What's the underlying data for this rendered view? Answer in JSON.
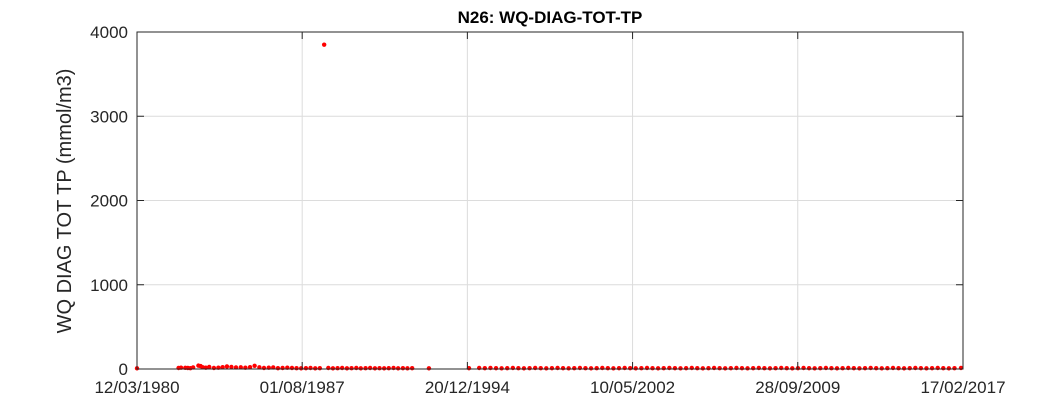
{
  "chart_data": {
    "type": "scatter",
    "title": "N26: WQ-DIAG-TOT-TP",
    "xlabel": "",
    "ylabel": "WQ DIAG TOT TP (mmol/m3)",
    "x_type": "date",
    "xlim": [
      "1980-03-12",
      "2017-02-17"
    ],
    "ylim": [
      0,
      4000
    ],
    "x_ticks": [
      "1980-03-12",
      "1987-08-01",
      "1994-12-20",
      "2002-05-10",
      "2009-09-28",
      "2017-02-17"
    ],
    "x_tick_labels": [
      "12/03/1980",
      "01/08/1987",
      "20/12/1994",
      "10/05/2002",
      "28/09/2009",
      "17/02/2017"
    ],
    "y_ticks": [
      0,
      1000,
      2000,
      3000,
      4000
    ],
    "y_tick_labels": [
      "0",
      "1000",
      "2000",
      "3000",
      "4000"
    ],
    "grid": true,
    "marker_color": "#ff0000",
    "series": [
      {
        "points": [
          [
            "1980-03-12",
            8
          ],
          [
            "1982-01-20",
            12
          ],
          [
            "1982-03-01",
            15
          ],
          [
            "1982-05-10",
            14
          ],
          [
            "1982-06-20",
            12
          ],
          [
            "1982-08-01",
            10
          ],
          [
            "1982-09-15",
            18
          ],
          [
            "1982-12-10",
            40
          ],
          [
            "1983-01-15",
            35
          ],
          [
            "1983-02-20",
            20
          ],
          [
            "1983-04-10",
            15
          ],
          [
            "1983-06-05",
            25
          ],
          [
            "1983-08-20",
            12
          ],
          [
            "1983-11-01",
            15
          ],
          [
            "1984-01-10",
            22
          ],
          [
            "1984-03-20",
            30
          ],
          [
            "1984-06-01",
            25
          ],
          [
            "1984-08-15",
            18
          ],
          [
            "1984-11-01",
            20
          ],
          [
            "1985-01-15",
            15
          ],
          [
            "1985-04-01",
            22
          ],
          [
            "1985-06-15",
            38
          ],
          [
            "1985-09-01",
            20
          ],
          [
            "1985-11-15",
            12
          ],
          [
            "1986-02-01",
            15
          ],
          [
            "1986-04-15",
            18
          ],
          [
            "1986-07-01",
            10
          ],
          [
            "1986-09-15",
            12
          ],
          [
            "1986-12-01",
            15
          ],
          [
            "1987-02-15",
            12
          ],
          [
            "1987-05-01",
            10
          ],
          [
            "1987-07-15",
            8
          ],
          [
            "1987-10-01",
            10
          ],
          [
            "1987-12-15",
            12
          ],
          [
            "1988-03-01",
            8
          ],
          [
            "1988-05-15",
            10
          ],
          [
            "1988-07-25",
            3850
          ],
          [
            "1988-10-01",
            12
          ],
          [
            "1988-12-15",
            8
          ],
          [
            "1989-03-01",
            10
          ],
          [
            "1989-05-15",
            12
          ],
          [
            "1989-08-01",
            8
          ],
          [
            "1989-10-15",
            10
          ],
          [
            "1990-01-01",
            12
          ],
          [
            "1990-03-15",
            8
          ],
          [
            "1990-06-01",
            10
          ],
          [
            "1990-08-15",
            12
          ],
          [
            "1990-11-01",
            8
          ],
          [
            "1991-01-15",
            10
          ],
          [
            "1991-04-01",
            8
          ],
          [
            "1991-06-15",
            10
          ],
          [
            "1991-09-01",
            12
          ],
          [
            "1991-11-15",
            8
          ],
          [
            "1992-02-01",
            10
          ],
          [
            "1992-04-15",
            8
          ],
          [
            "1992-07-01",
            10
          ],
          [
            "1993-04-01",
            8
          ],
          [
            "1995-01-15",
            10
          ],
          [
            "1995-07-01",
            12
          ],
          [
            "1995-10-01",
            10
          ],
          [
            "1996-01-01",
            12
          ],
          [
            "1996-04-01",
            10
          ],
          [
            "1996-07-01",
            8
          ],
          [
            "1996-10-01",
            10
          ],
          [
            "1997-01-01",
            12
          ],
          [
            "1997-04-01",
            10
          ],
          [
            "1997-07-01",
            8
          ],
          [
            "1997-10-01",
            10
          ],
          [
            "1998-01-01",
            12
          ],
          [
            "1998-04-01",
            10
          ],
          [
            "1998-07-01",
            8
          ],
          [
            "1998-10-01",
            10
          ],
          [
            "1999-01-01",
            12
          ],
          [
            "1999-04-01",
            10
          ],
          [
            "1999-07-01",
            8
          ],
          [
            "1999-10-01",
            10
          ],
          [
            "2000-01-01",
            12
          ],
          [
            "2000-04-01",
            10
          ],
          [
            "2000-07-01",
            8
          ],
          [
            "2000-10-01",
            10
          ],
          [
            "2001-01-01",
            12
          ],
          [
            "2001-04-01",
            10
          ],
          [
            "2001-07-01",
            8
          ],
          [
            "2001-10-01",
            10
          ],
          [
            "2002-01-01",
            12
          ],
          [
            "2002-04-01",
            10
          ],
          [
            "2002-07-01",
            8
          ],
          [
            "2002-10-01",
            10
          ],
          [
            "2003-01-01",
            12
          ],
          [
            "2003-04-01",
            10
          ],
          [
            "2003-07-01",
            8
          ],
          [
            "2003-10-01",
            10
          ],
          [
            "2004-01-01",
            12
          ],
          [
            "2004-04-01",
            10
          ],
          [
            "2004-07-01",
            8
          ],
          [
            "2004-10-01",
            10
          ],
          [
            "2005-01-01",
            12
          ],
          [
            "2005-04-01",
            10
          ],
          [
            "2005-07-01",
            8
          ],
          [
            "2005-10-01",
            10
          ],
          [
            "2006-01-01",
            12
          ],
          [
            "2006-04-01",
            10
          ],
          [
            "2006-07-01",
            8
          ],
          [
            "2006-10-01",
            10
          ],
          [
            "2007-01-01",
            12
          ],
          [
            "2007-04-01",
            10
          ],
          [
            "2007-07-01",
            8
          ],
          [
            "2007-10-01",
            10
          ],
          [
            "2008-01-01",
            12
          ],
          [
            "2008-04-01",
            10
          ],
          [
            "2008-07-01",
            8
          ],
          [
            "2008-10-01",
            10
          ],
          [
            "2009-01-01",
            12
          ],
          [
            "2009-04-01",
            10
          ],
          [
            "2009-07-01",
            8
          ],
          [
            "2009-10-01",
            10
          ],
          [
            "2010-01-01",
            12
          ],
          [
            "2010-04-01",
            10
          ],
          [
            "2010-07-01",
            8
          ],
          [
            "2010-10-01",
            10
          ],
          [
            "2011-01-01",
            12
          ],
          [
            "2011-04-01",
            10
          ],
          [
            "2011-07-01",
            8
          ],
          [
            "2011-10-01",
            10
          ],
          [
            "2012-01-01",
            12
          ],
          [
            "2012-04-01",
            10
          ],
          [
            "2012-07-01",
            8
          ],
          [
            "2012-10-01",
            10
          ],
          [
            "2013-01-01",
            12
          ],
          [
            "2013-04-01",
            10
          ],
          [
            "2013-07-01",
            8
          ],
          [
            "2013-10-01",
            10
          ],
          [
            "2014-01-01",
            12
          ],
          [
            "2014-04-01",
            10
          ],
          [
            "2014-07-01",
            8
          ],
          [
            "2014-10-01",
            10
          ],
          [
            "2015-01-01",
            12
          ],
          [
            "2015-04-01",
            10
          ],
          [
            "2015-07-01",
            8
          ],
          [
            "2015-10-01",
            10
          ],
          [
            "2016-01-01",
            12
          ],
          [
            "2016-04-01",
            10
          ],
          [
            "2016-07-01",
            8
          ],
          [
            "2016-10-01",
            10
          ],
          [
            "2017-01-15",
            12
          ]
        ]
      }
    ]
  }
}
